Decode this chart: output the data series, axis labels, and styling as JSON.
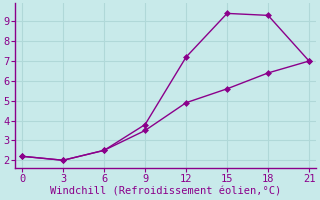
{
  "line1_x": [
    0,
    3,
    6,
    9,
    12,
    15,
    18,
    21
  ],
  "line1_y": [
    2.2,
    2.0,
    2.5,
    3.8,
    7.2,
    9.4,
    9.3,
    7.0
  ],
  "line2_x": [
    0,
    3,
    6,
    9,
    12,
    15,
    18,
    21
  ],
  "line2_y": [
    2.2,
    2.0,
    2.5,
    3.5,
    4.9,
    5.6,
    6.4,
    7.0
  ],
  "line_color": "#8b008b",
  "bg_color": "#c8eaea",
  "grid_color": "#b0d8d8",
  "xlabel": "Windchill (Refroidissement éolien,°C)",
  "xlabel_color": "#8b008b",
  "xticks": [
    0,
    3,
    6,
    9,
    12,
    15,
    18,
    21
  ],
  "yticks": [
    2,
    3,
    4,
    5,
    6,
    7,
    8,
    9
  ],
  "xlim": [
    -0.5,
    21.5
  ],
  "ylim": [
    1.6,
    9.9
  ],
  "markersize": 3,
  "linewidth": 1.0,
  "tick_fontsize": 7.5,
  "xlabel_fontsize": 7.5
}
